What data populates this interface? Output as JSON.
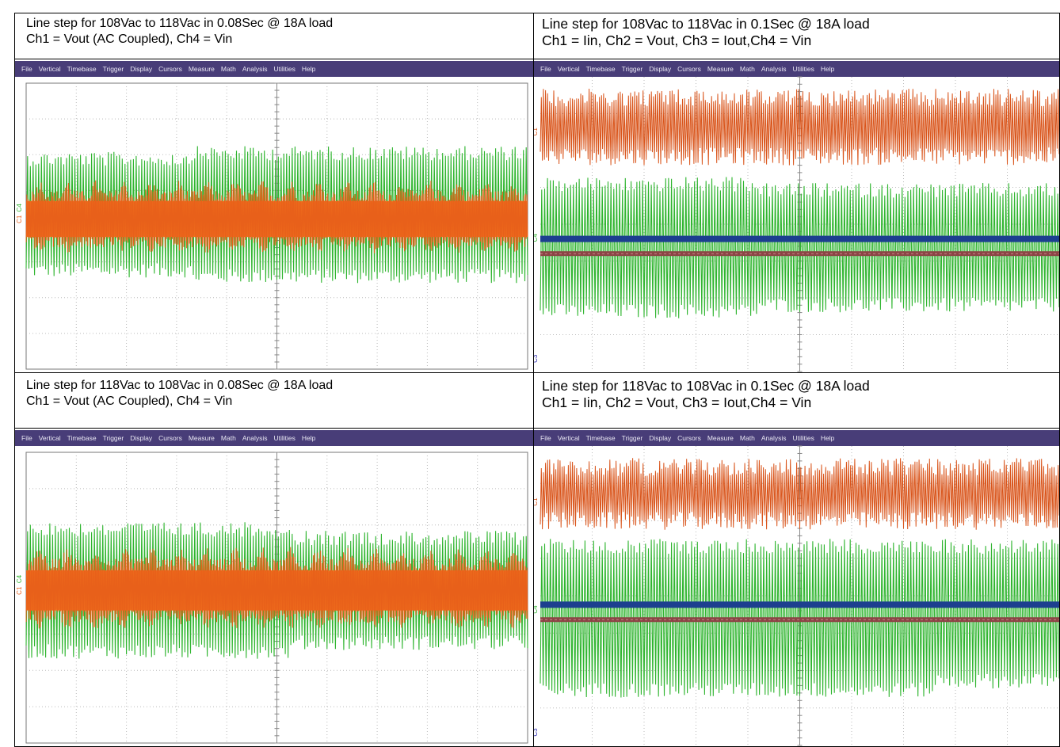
{
  "panels": [
    {
      "caption": [
        "Line step for 108Vac to 118Vac in 0.08Sec @ 18A load",
        "Ch1 = Vout (AC Coupled), Ch4 = Vin"
      ],
      "menu": [
        "File",
        "Vertical",
        "Timebase",
        "Trigger",
        "Display",
        "Cursors",
        "Measure",
        "Math",
        "Analysis",
        "Utilities",
        "Help"
      ],
      "channel_labels": [
        "C4",
        "C1"
      ]
    },
    {
      "caption": [
        "Line step for 108Vac to 118Vac in 0.1Sec @ 18A load",
        "Ch1 = Iin, Ch2 = Vout, Ch3 = Iout,Ch4 = Vin"
      ],
      "menu": [
        "File",
        "Vertical",
        "Timebase",
        "Trigger",
        "Display",
        "Cursors",
        "Measure",
        "Math",
        "Analysis",
        "Utilities",
        "Help"
      ],
      "channel_labels": [
        "C1",
        "C4",
        "C3"
      ]
    },
    {
      "caption": [
        "Line step for 118Vac to 108Vac in 0.08Sec @ 18A load",
        "Ch1 = Vout (AC Coupled), Ch4 = Vin"
      ],
      "menu": [
        "File",
        "Vertical",
        "Timebase",
        "Trigger",
        "Display",
        "Cursors",
        "Measure",
        "Math",
        "Analysis",
        "Utilities",
        "Help"
      ],
      "channel_labels": [
        "C4",
        "C1"
      ]
    },
    {
      "caption": [
        "Line step for 118Vac to 108Vac in 0.1Sec @ 18A load",
        "Ch1 = Iin, Ch2 = Vout, Ch3 = Iout,Ch4 = Vin"
      ],
      "menu": [
        "File",
        "Vertical",
        "Timebase",
        "Trigger",
        "Display",
        "Cursors",
        "Measure",
        "Math",
        "Analysis",
        "Utilities",
        "Help"
      ],
      "channel_labels": [
        "C1",
        "C4",
        "C3"
      ]
    }
  ]
}
